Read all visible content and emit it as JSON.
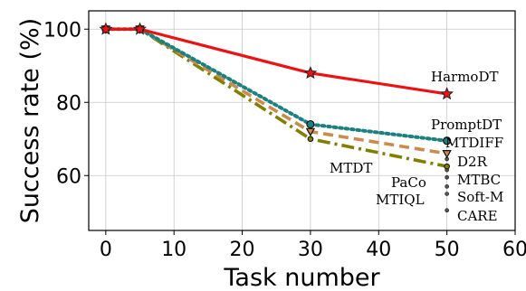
{
  "chart_data": {
    "type": "line",
    "title": "",
    "xlabel": "Task number",
    "ylabel": "Success rate (%)",
    "xlim": [
      -2.5,
      60
    ],
    "ylim": [
      45,
      105
    ],
    "xticks": [
      0,
      10,
      20,
      30,
      40,
      50,
      60
    ],
    "yticks": [
      60,
      80,
      100
    ],
    "grid": true,
    "series": [
      {
        "name": "HarmoDT",
        "x": [
          0,
          5,
          30,
          50
        ],
        "y": [
          100,
          100,
          88,
          82.3
        ],
        "color": "#ee1111",
        "dash": "solid",
        "marker": "star"
      },
      {
        "name": "PromptDT",
        "x": [
          0,
          5,
          30,
          50
        ],
        "y": [
          100,
          100,
          74,
          69.5
        ],
        "color": "#1a8080",
        "dash": "dotted",
        "marker": "circle"
      },
      {
        "name": "MTDIFF",
        "x": [
          0,
          5,
          30,
          50
        ],
        "y": [
          100,
          100,
          72,
          66
        ],
        "color": "#cd8a4a",
        "dash": "dashed",
        "marker": "triangle-down"
      },
      {
        "name": "MTDT",
        "x": [
          0,
          5,
          30,
          50
        ],
        "y": [
          100,
          100,
          70,
          62.5
        ],
        "color": "#808000",
        "dash": "dashdot",
        "marker": "circle-small"
      },
      {
        "name": "D2R",
        "x": [
          50
        ],
        "y": [
          64.5
        ],
        "marker": "dot"
      },
      {
        "name": "MTBC",
        "x": [
          50
        ],
        "y": [
          61.5
        ],
        "marker": "dot"
      },
      {
        "name": "PaCo",
        "x": [
          50
        ],
        "y": [
          59.5
        ],
        "marker": "dot"
      },
      {
        "name": "MTIQL",
        "x": [
          50
        ],
        "y": [
          57
        ],
        "marker": "dot"
      },
      {
        "name": "Soft-M",
        "x": [
          50
        ],
        "y": [
          55
        ],
        "marker": "dot"
      },
      {
        "name": "CARE",
        "x": [
          50
        ],
        "y": [
          50.5
        ],
        "marker": "dot"
      }
    ]
  }
}
